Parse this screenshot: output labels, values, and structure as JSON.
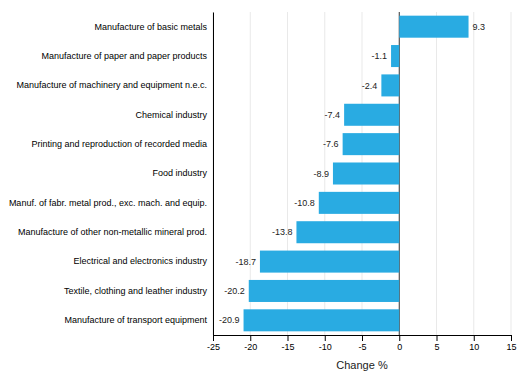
{
  "chart_data": {
    "type": "bar",
    "orientation": "horizontal",
    "categories": [
      "Manufacture of transport equipment",
      "Textile, clothing and leather industry",
      "Electrical and electronics industry",
      "Manufacture of other non-metallic mineral prod.",
      "Manuf. of fabr. metal prod., exc. mach. and equip.",
      "Food industry",
      "Printing and reproduction of recorded media",
      "Chemical industry",
      "Manufacture of machinery and equipment n.e.c.",
      "Manufacture of paper and paper products",
      "Manufacture of basic metals"
    ],
    "values": [
      -20.9,
      -20.2,
      -18.7,
      -13.8,
      -10.8,
      -8.9,
      -7.6,
      -7.4,
      -2.4,
      -1.1,
      9.3
    ],
    "color": "#29abe2",
    "xlabel": "Change %",
    "xlim": [
      -25,
      15
    ],
    "xticks": [
      -25,
      -20,
      -15,
      -10,
      -5,
      0,
      5,
      10,
      15
    ],
    "grid": true,
    "data_labels": true
  }
}
